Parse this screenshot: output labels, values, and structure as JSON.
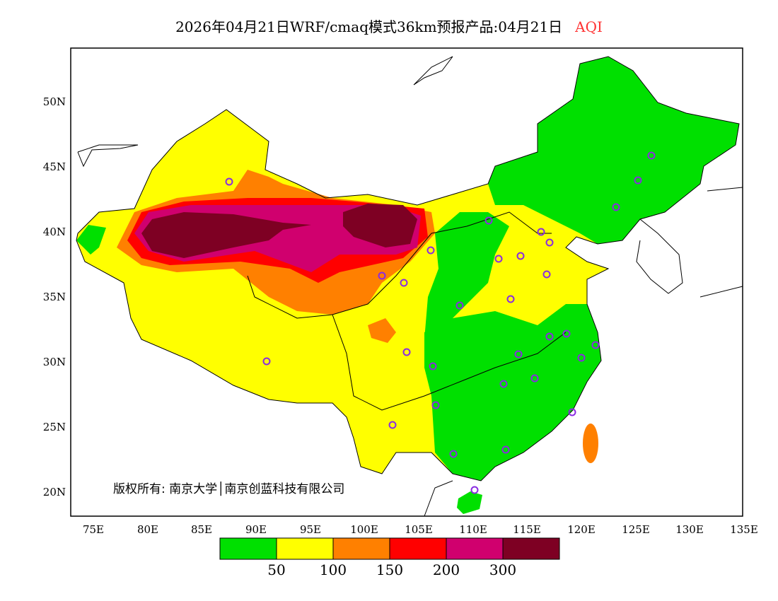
{
  "title": {
    "main": "2026年04月21日WRF/cmaq模式36km预报产品:04月21日",
    "variable": "AQI"
  },
  "map": {
    "lon_ticks": [
      "75E",
      "80E",
      "85E",
      "90E",
      "95E",
      "100E",
      "105E",
      "110E",
      "115E",
      "120E",
      "125E",
      "130E",
      "135E"
    ],
    "lat_ticks": [
      "50N",
      "45N",
      "40N",
      "35N",
      "30N",
      "25N",
      "20N"
    ],
    "copyright": "版权所有: 南京大学│南京创蓝科技有限公司"
  },
  "legend": {
    "colors": [
      "#00e000",
      "#ffff00",
      "#ff8000",
      "#ff0000",
      "#d0006e",
      "#7e0023"
    ],
    "labels": [
      "50",
      "100",
      "150",
      "200",
      "300"
    ]
  },
  "colors": {
    "title_accent": "#ff3333",
    "city_marker": "#8a2be2"
  }
}
